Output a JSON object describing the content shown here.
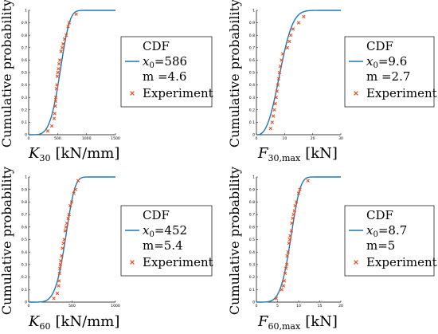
{
  "chart_data": [
    {
      "type": "line",
      "panel": "K30",
      "ylabel": "Cumulative probability",
      "xlabel_symbol": "K",
      "xlabel_sub": "30",
      "xlabel_unit": "[kN/mm]",
      "xlim": [
        0,
        1500
      ],
      "ylim": [
        0,
        1
      ],
      "xticks": [
        0,
        500,
        1000,
        1500
      ],
      "yticks": [
        0,
        0.1,
        0.2,
        0.3,
        0.4,
        0.5,
        0.6,
        0.7,
        0.8,
        0.9,
        1
      ],
      "legend": {
        "title": "CDF",
        "fit_label": "x",
        "fit_label_sub": "0",
        "fit_value": "=586",
        "m_label": "m =4.6",
        "exp_label": "Experiment"
      },
      "weibull": {
        "x0": 586,
        "m": 4.6
      },
      "series": [
        {
          "name": "Experiment",
          "points": [
            [
              330,
              0.03
            ],
            [
              400,
              0.07
            ],
            [
              440,
              0.13
            ],
            [
              450,
              0.17
            ],
            [
              460,
              0.23
            ],
            [
              465,
              0.27
            ],
            [
              470,
              0.3
            ],
            [
              480,
              0.37
            ],
            [
              490,
              0.4
            ],
            [
              495,
              0.47
            ],
            [
              505,
              0.5
            ],
            [
              515,
              0.53
            ],
            [
              525,
              0.57
            ],
            [
              540,
              0.6
            ],
            [
              560,
              0.67
            ],
            [
              580,
              0.7
            ],
            [
              595,
              0.73
            ],
            [
              620,
              0.77
            ],
            [
              650,
              0.8
            ],
            [
              680,
              0.87
            ],
            [
              700,
              0.9
            ],
            [
              820,
              0.97
            ]
          ]
        }
      ]
    },
    {
      "type": "line",
      "panel": "F30max",
      "ylabel": "Cumulative probability",
      "xlabel_symbol": "F",
      "xlabel_sub": "30,max",
      "xlabel_unit": "[kN]",
      "xlim": [
        0,
        30
      ],
      "ylim": [
        0,
        1
      ],
      "xticks": [
        0,
        10,
        20,
        30
      ],
      "yticks": [
        0,
        0.1,
        0.2,
        0.3,
        0.4,
        0.5,
        0.6,
        0.7,
        0.8,
        0.9,
        1
      ],
      "legend": {
        "title": "CDF",
        "fit_label": "x",
        "fit_label_sub": "0",
        "fit_value": "=9.6",
        "m_label": "m =2.7",
        "exp_label": "Experiment"
      },
      "weibull": {
        "x0": 9.6,
        "m": 2.7
      },
      "series": [
        {
          "name": "Experiment",
          "points": [
            [
              5.0,
              0.05
            ],
            [
              5.6,
              0.1
            ],
            [
              6.0,
              0.15
            ],
            [
              6.4,
              0.2
            ],
            [
              6.7,
              0.25
            ],
            [
              7.0,
              0.3
            ],
            [
              7.3,
              0.35
            ],
            [
              7.6,
              0.4
            ],
            [
              7.9,
              0.45
            ],
            [
              8.2,
              0.5
            ],
            [
              8.5,
              0.55
            ],
            [
              8.9,
              0.6
            ],
            [
              9.4,
              0.65
            ],
            [
              11.0,
              0.7
            ],
            [
              11.7,
              0.75
            ],
            [
              12.2,
              0.8
            ],
            [
              13.0,
              0.85
            ],
            [
              15.0,
              0.9
            ],
            [
              16.8,
              0.95
            ]
          ]
        }
      ]
    },
    {
      "type": "line",
      "panel": "K60",
      "ylabel": "Cumulative probability",
      "xlabel_symbol": "K",
      "xlabel_sub": "60",
      "xlabel_unit": "[kN/mm]",
      "xlim": [
        0,
        1000
      ],
      "ylim": [
        0,
        1
      ],
      "xticks": [
        0,
        500,
        1000
      ],
      "yticks": [
        0,
        0.1,
        0.2,
        0.3,
        0.4,
        0.5,
        0.6,
        0.7,
        0.8,
        0.9,
        1
      ],
      "legend": {
        "title": "CDF",
        "fit_label": "x",
        "fit_label_sub": "0",
        "fit_value": "=452",
        "m_label": "m=5.4",
        "exp_label": "Experiment"
      },
      "weibull": {
        "x0": 452,
        "m": 5.4
      },
      "series": [
        {
          "name": "Experiment",
          "points": [
            [
              290,
              0.03
            ],
            [
              330,
              0.07
            ],
            [
              345,
              0.13
            ],
            [
              350,
              0.17
            ],
            [
              355,
              0.23
            ],
            [
              360,
              0.27
            ],
            [
              365,
              0.3
            ],
            [
              370,
              0.33
            ],
            [
              380,
              0.37
            ],
            [
              390,
              0.43
            ],
            [
              400,
              0.47
            ],
            [
              410,
              0.5
            ],
            [
              420,
              0.57
            ],
            [
              430,
              0.6
            ],
            [
              440,
              0.63
            ],
            [
              455,
              0.67
            ],
            [
              465,
              0.7
            ],
            [
              480,
              0.77
            ],
            [
              495,
              0.8
            ],
            [
              520,
              0.87
            ],
            [
              540,
              0.9
            ],
            [
              570,
              0.97
            ]
          ]
        }
      ]
    },
    {
      "type": "line",
      "panel": "F60max",
      "ylabel": "Cumulative probability",
      "xlabel_symbol": "F",
      "xlabel_sub": "60,max",
      "xlabel_unit": "[kN]",
      "xlim": [
        0,
        20
      ],
      "ylim": [
        0,
        1
      ],
      "xticks": [
        0,
        5,
        10,
        15,
        20
      ],
      "yticks": [
        0,
        0.1,
        0.2,
        0.3,
        0.4,
        0.5,
        0.6,
        0.7,
        0.8,
        0.9,
        1
      ],
      "legend": {
        "title": "CDF",
        "fit_label": "x",
        "fit_label_sub": "0",
        "fit_value": "=8.7",
        "m_label": "m=5",
        "exp_label": "Experiment"
      },
      "weibull": {
        "x0": 8.7,
        "m": 5
      },
      "series": [
        {
          "name": "Experiment",
          "points": [
            [
              4.7,
              0.03
            ],
            [
              6.0,
              0.1
            ],
            [
              6.4,
              0.13
            ],
            [
              6.6,
              0.17
            ],
            [
              6.8,
              0.23
            ],
            [
              7.0,
              0.27
            ],
            [
              7.2,
              0.3
            ],
            [
              7.3,
              0.37
            ],
            [
              7.5,
              0.4
            ],
            [
              7.7,
              0.47
            ],
            [
              7.9,
              0.5
            ],
            [
              8.0,
              0.53
            ],
            [
              8.3,
              0.57
            ],
            [
              8.4,
              0.63
            ],
            [
              8.6,
              0.67
            ],
            [
              8.8,
              0.7
            ],
            [
              9.0,
              0.73
            ],
            [
              9.2,
              0.77
            ],
            [
              9.5,
              0.8
            ],
            [
              10.0,
              0.87
            ],
            [
              10.3,
              0.9
            ],
            [
              12.2,
              0.97
            ]
          ]
        }
      ]
    }
  ],
  "colors": {
    "fit_line": "#1f77b4",
    "marker": "#e8501e",
    "axis": "#000000"
  }
}
